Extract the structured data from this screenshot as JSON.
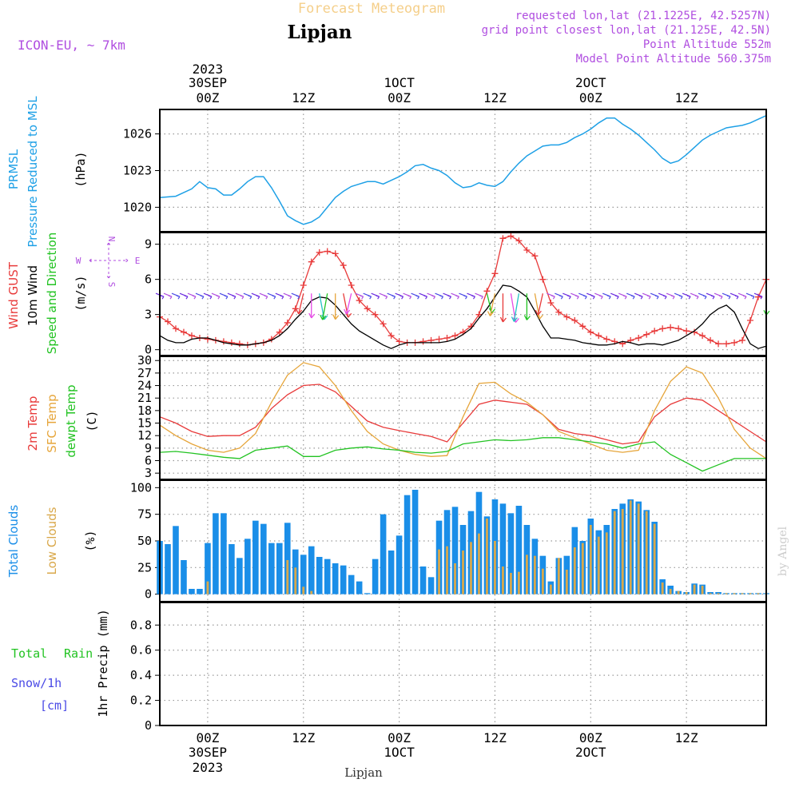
{
  "header": {
    "title": "Forecast Meteogram",
    "location": "Lipjan",
    "model": "ICON-EU, ~ 7km",
    "requested": "requested lon,lat (21.1225E, 42.5257N)",
    "gridpoint": "grid point closest lon,lat (21.125E, 42.5N)",
    "point_alt": "Point Altitude 552m",
    "model_alt": "Model Point Altitude 560.375m",
    "footer": "Lipjan",
    "credit": "by Angel"
  },
  "time_axis": {
    "top_labels": [
      {
        "l1": "2023",
        "l2": "30SEP",
        "l3": "00Z",
        "h": 6
      },
      {
        "l1": "",
        "l2": "",
        "l3": "12Z",
        "h": 18
      },
      {
        "l1": "",
        "l2": "1OCT",
        "l3": "00Z",
        "h": 30
      },
      {
        "l1": "",
        "l2": "",
        "l3": "12Z",
        "h": 42
      },
      {
        "l1": "",
        "l2": "2OCT",
        "l3": "00Z",
        "h": 54
      },
      {
        "l1": "",
        "l2": "",
        "l3": "12Z",
        "h": 66
      }
    ],
    "bottom_labels": [
      {
        "l1": "00Z",
        "l2": "30SEP",
        "l3": "2023",
        "h": 6
      },
      {
        "l1": "12Z",
        "l2": "",
        "l3": "",
        "h": 18
      },
      {
        "l1": "00Z",
        "l2": "1OCT",
        "l3": "",
        "h": 30
      },
      {
        "l1": "12Z",
        "l2": "",
        "l3": "",
        "h": 42
      },
      {
        "l1": "00Z",
        "l2": "2OCT",
        "l3": "",
        "h": 54
      },
      {
        "l1": "12Z",
        "l2": "",
        "l3": "",
        "h": 66
      }
    ]
  },
  "panels": {
    "pressure": {
      "label1": "PRMSL",
      "label2": "Pressure Reduced to MSL",
      "unit": "(hPa)"
    },
    "wind": {
      "label1": "Wind GUST",
      "label2": "10m Wind",
      "label3": "Speed and Direction",
      "unit": "(m/s)",
      "compass_n": "N",
      "compass_s": "S",
      "compass_w": "W",
      "compass_e": "E"
    },
    "temp": {
      "label1": "2m Temp",
      "label2": "SFC Temp",
      "label3": "dewpt Temp",
      "unit": "(C)"
    },
    "cloud": {
      "label1": "Total Clouds",
      "label2": "Low Clouds",
      "unit": "(%)"
    },
    "precip": {
      "label1": "Total",
      "label1b": "Rain",
      "label2": "Snow/1h",
      "label3": "[cm]",
      "unit": "1hr Precip (mm)"
    }
  },
  "colors": {
    "pressure": "#1ea0e6",
    "gust": "#e83a3a",
    "wind": "#000000",
    "t2m": "#e83a3a",
    "sfc": "#e6a53a",
    "dew": "#22c322",
    "total_clouds": "#1a8ee8",
    "low_clouds": "#d9a84a",
    "purple": "#b04ee0",
    "green": "#22c322",
    "blue": "#4a4ae6"
  },
  "chart_data": [
    {
      "type": "line",
      "title": "PRMSL Pressure Reduced to MSL",
      "ylabel": "(hPa)",
      "ylim": [
        1018,
        1028
      ],
      "yticks": [
        1020,
        1023,
        1026
      ],
      "x_hours": [
        0,
        2,
        4,
        5,
        6,
        7,
        8,
        9,
        10,
        11,
        12,
        13,
        14,
        15,
        16,
        17,
        18,
        19,
        20,
        21,
        22,
        23,
        24,
        25,
        26,
        27,
        28,
        29,
        30,
        31,
        32,
        33,
        34,
        35,
        36,
        37,
        38,
        39,
        40,
        41,
        42,
        43,
        44,
        45,
        46,
        47,
        48,
        49,
        50,
        51,
        52,
        53,
        54,
        55,
        56,
        57,
        58,
        59,
        60,
        61,
        62,
        63,
        64,
        65,
        66,
        67,
        68,
        69,
        70,
        71,
        72,
        73,
        74,
        75,
        76
      ],
      "values": [
        1020.8,
        1020.9,
        1021.5,
        1022.1,
        1021.6,
        1021.5,
        1021.0,
        1021.0,
        1021.5,
        1022.1,
        1022.5,
        1022.5,
        1021.6,
        1020.5,
        1019.3,
        1018.9,
        1018.6,
        1018.8,
        1019.2,
        1020.0,
        1020.8,
        1021.3,
        1021.7,
        1021.9,
        1022.1,
        1022.1,
        1021.9,
        1022.2,
        1022.5,
        1022.9,
        1023.4,
        1023.5,
        1023.2,
        1023.0,
        1022.6,
        1022.0,
        1021.6,
        1021.7,
        1022.0,
        1021.8,
        1021.7,
        1022.1,
        1022.9,
        1023.6,
        1024.2,
        1024.6,
        1025.0,
        1025.1,
        1025.1,
        1025.3,
        1025.7,
        1026.0,
        1026.4,
        1026.9,
        1027.3,
        1027.3,
        1026.8,
        1026.4,
        1025.9,
        1025.3,
        1024.7,
        1024.0,
        1023.6,
        1023.8,
        1024.3,
        1024.9,
        1025.5,
        1025.9,
        1026.2,
        1026.5,
        1026.6,
        1026.7,
        1026.9,
        1027.2,
        1027.5
      ],
      "color": "#1ea0e6"
    },
    {
      "type": "line",
      "title": "Wind GUST / 10m Wind Speed and Direction",
      "ylabel": "(m/s)",
      "ylim": [
        -0.5,
        10
      ],
      "yticks": [
        0,
        3,
        6,
        9
      ],
      "series": [
        {
          "name": "Wind GUST",
          "color": "#e83a3a",
          "markers": "+",
          "x": [
            0,
            1,
            2,
            3,
            4,
            5,
            6,
            7,
            8,
            9,
            10,
            11,
            12,
            13,
            14,
            15,
            16,
            17,
            18,
            19,
            20,
            21,
            22,
            23,
            24,
            25,
            26,
            27,
            28,
            29,
            30,
            31,
            32,
            33,
            34,
            35,
            36,
            37,
            38,
            39,
            40,
            41,
            42,
            43,
            44,
            45,
            46,
            47,
            48,
            49,
            50,
            51,
            52,
            53,
            54,
            55,
            56,
            57,
            58,
            59,
            60,
            61,
            62,
            63,
            64,
            65,
            66,
            67,
            68,
            69,
            70,
            71,
            72,
            73,
            74,
            75,
            76
          ],
          "values": [
            2.8,
            2.4,
            1.8,
            1.5,
            1.2,
            1.0,
            0.9,
            0.8,
            0.7,
            0.6,
            0.5,
            0.4,
            0.5,
            0.6,
            0.9,
            1.5,
            2.3,
            3.5,
            5.5,
            7.5,
            8.3,
            8.4,
            8.2,
            7.2,
            5.5,
            4.2,
            3.5,
            3.0,
            2.2,
            1.2,
            0.7,
            0.6,
            0.6,
            0.7,
            0.8,
            0.9,
            1.0,
            1.2,
            1.5,
            2.0,
            3.0,
            5.0,
            6.5,
            9.5,
            9.7,
            9.3,
            8.5,
            8.0,
            6.0,
            4.0,
            3.2,
            2.8,
            2.5,
            2.0,
            1.5,
            1.2,
            0.9,
            0.7,
            0.5,
            0.8,
            1.0,
            1.3,
            1.6,
            1.8,
            1.9,
            1.8,
            1.6,
            1.5,
            1.2,
            0.8,
            0.5,
            0.5,
            0.6,
            0.8,
            2.5,
            4.5,
            6.0
          ]
        },
        {
          "name": "10m Wind",
          "color": "#000000",
          "markers": "",
          "x": [
            0,
            1,
            2,
            3,
            4,
            5,
            6,
            7,
            8,
            9,
            10,
            11,
            12,
            13,
            14,
            15,
            16,
            17,
            18,
            19,
            20,
            21,
            22,
            23,
            24,
            25,
            26,
            27,
            28,
            29,
            30,
            31,
            32,
            33,
            34,
            35,
            36,
            37,
            38,
            39,
            40,
            41,
            42,
            43,
            44,
            45,
            46,
            47,
            48,
            49,
            50,
            51,
            52,
            53,
            54,
            55,
            56,
            57,
            58,
            59,
            60,
            61,
            62,
            63,
            64,
            65,
            66,
            67,
            68,
            69,
            70,
            71,
            72,
            73,
            74,
            75,
            76
          ],
          "values": [
            1.2,
            0.8,
            0.6,
            0.6,
            0.9,
            1.0,
            1.0,
            0.8,
            0.6,
            0.5,
            0.4,
            0.4,
            0.5,
            0.6,
            0.8,
            1.2,
            1.8,
            2.6,
            3.3,
            4.2,
            4.5,
            4.4,
            3.8,
            3.0,
            2.2,
            1.6,
            1.2,
            0.8,
            0.4,
            0.1,
            0.4,
            0.6,
            0.6,
            0.6,
            0.6,
            0.6,
            0.7,
            0.9,
            1.3,
            1.8,
            2.7,
            3.5,
            4.5,
            5.5,
            5.4,
            5.0,
            4.5,
            3.3,
            2.0,
            1.0,
            1.0,
            0.9,
            0.8,
            0.6,
            0.5,
            0.4,
            0.4,
            0.5,
            0.7,
            0.6,
            0.4,
            0.5,
            0.5,
            0.4,
            0.6,
            0.8,
            1.2,
            1.6,
            2.2,
            3.0,
            3.5,
            3.8,
            3.2,
            1.8,
            0.5,
            0.1,
            0.3
          ]
        }
      ]
    },
    {
      "type": "line",
      "title": "2m Temp / SFC Temp / dewpt Temp",
      "ylabel": "(C)",
      "ylim": [
        1.5,
        31
      ],
      "yticks": [
        3,
        6,
        9,
        12,
        15,
        18,
        21,
        24,
        27,
        30
      ],
      "series": [
        {
          "name": "2m Temp",
          "color": "#e83a3a",
          "x": [
            0,
            2,
            4,
            6,
            8,
            10,
            12,
            14,
            16,
            18,
            20,
            22,
            24,
            26,
            28,
            30,
            32,
            34,
            36,
            38,
            40,
            42,
            44,
            46,
            48,
            50,
            52,
            54,
            56,
            58,
            60,
            62,
            64,
            66,
            68,
            70,
            72,
            74,
            76
          ],
          "values": [
            16.5,
            15.0,
            13.0,
            11.8,
            12.0,
            12.0,
            14.0,
            18.5,
            21.8,
            24.0,
            24.3,
            22.5,
            19.0,
            15.5,
            14.0,
            13.2,
            12.5,
            11.8,
            10.5,
            15.0,
            19.5,
            20.5,
            20.0,
            19.5,
            17.0,
            13.5,
            12.5,
            12.0,
            11.0,
            10.0,
            10.5,
            16.5,
            19.5,
            21.0,
            20.5,
            18.0,
            15.5,
            13.0,
            10.5
          ]
        },
        {
          "name": "SFC Temp",
          "color": "#e6a53a",
          "x": [
            0,
            2,
            4,
            6,
            8,
            10,
            12,
            14,
            16,
            18,
            20,
            22,
            24,
            26,
            28,
            30,
            32,
            34,
            36,
            38,
            40,
            42,
            44,
            46,
            48,
            50,
            52,
            54,
            56,
            58,
            60,
            62,
            64,
            66,
            68,
            70,
            72,
            74,
            76
          ],
          "values": [
            14.5,
            12.0,
            10.0,
            8.5,
            8.0,
            9.0,
            12.5,
            20.0,
            26.5,
            29.5,
            28.5,
            24.0,
            18.0,
            13.0,
            10.0,
            8.5,
            7.5,
            7.0,
            7.2,
            16.5,
            24.5,
            24.8,
            22.0,
            20.0,
            17.0,
            13.0,
            11.5,
            10.0,
            8.5,
            8.0,
            8.5,
            18.0,
            25.0,
            28.5,
            27.0,
            21.0,
            13.5,
            9.0,
            6.5
          ]
        },
        {
          "name": "dewpt Temp",
          "color": "#22c322",
          "x": [
            0,
            2,
            4,
            6,
            8,
            10,
            12,
            14,
            16,
            18,
            20,
            22,
            24,
            26,
            28,
            30,
            32,
            34,
            36,
            38,
            40,
            42,
            44,
            46,
            48,
            50,
            52,
            54,
            56,
            58,
            60,
            62,
            64,
            66,
            68,
            70,
            72,
            74,
            76
          ],
          "values": [
            8.0,
            8.2,
            7.8,
            7.3,
            6.8,
            6.5,
            8.5,
            9.0,
            9.5,
            7.0,
            7.0,
            8.5,
            9.0,
            9.3,
            8.8,
            8.5,
            8.0,
            7.8,
            8.2,
            10.0,
            10.5,
            11.0,
            10.8,
            11.0,
            11.5,
            11.5,
            11.0,
            10.5,
            10.0,
            9.0,
            10.0,
            10.5,
            7.5,
            5.5,
            3.5,
            5.0,
            6.5,
            6.5,
            6.5
          ]
        }
      ]
    },
    {
      "type": "bar",
      "title": "Total Clouds / Low Clouds",
      "ylabel": "(%)",
      "ylim": [
        -7,
        107
      ],
      "yticks": [
        0,
        25,
        50,
        75,
        100
      ],
      "x_hours": [
        0,
        1,
        2,
        3,
        4,
        5,
        6,
        7,
        8,
        9,
        10,
        11,
        12,
        13,
        14,
        15,
        16,
        17,
        18,
        19,
        20,
        21,
        22,
        23,
        24,
        25,
        26,
        27,
        28,
        29,
        30,
        31,
        32,
        33,
        34,
        35,
        36,
        37,
        38,
        39,
        40,
        41,
        42,
        43,
        44,
        45,
        46,
        47,
        48,
        49,
        50,
        51,
        52,
        53,
        54,
        55,
        56,
        57,
        58,
        59,
        60,
        61,
        62,
        63,
        64,
        65,
        66,
        67,
        68,
        69,
        70,
        71,
        72,
        73,
        74,
        75,
        76
      ],
      "series": [
        {
          "name": "Total Clouds",
          "color": "#1a8ee8",
          "values": [
            50,
            47,
            64,
            32,
            5,
            5,
            48,
            76,
            76,
            47,
            34,
            52,
            69,
            66,
            48,
            48,
            67,
            42,
            37,
            45,
            35,
            33,
            29,
            27,
            18,
            12,
            1,
            33,
            75,
            41,
            55,
            93,
            98,
            26,
            16,
            69,
            79,
            82,
            65,
            78,
            96,
            73,
            89,
            85,
            76,
            83,
            65,
            52,
            36,
            12,
            34,
            36,
            63,
            50,
            71,
            60,
            65,
            80,
            85,
            89,
            87,
            79,
            68,
            14,
            8,
            3,
            2,
            10,
            9,
            2,
            2,
            1,
            1,
            1,
            1,
            1,
            1
          ]
        },
        {
          "name": "Low Clouds",
          "color": "#d9a84a",
          "values": [
            0,
            0,
            0,
            0,
            0,
            0,
            12,
            0,
            0,
            0,
            0,
            0,
            0,
            0,
            0,
            0,
            32,
            25,
            7,
            3,
            0,
            0,
            0,
            0,
            0,
            0,
            0,
            0,
            0,
            0,
            0,
            0,
            0,
            0,
            0,
            42,
            45,
            29,
            41,
            49,
            57,
            71,
            50,
            26,
            20,
            21,
            37,
            36,
            24,
            9,
            34,
            23,
            44,
            48,
            65,
            54,
            58,
            78,
            80,
            88,
            85,
            78,
            66,
            11,
            5,
            3,
            2,
            9,
            8,
            1,
            1,
            1,
            1,
            1,
            1,
            1,
            1
          ]
        }
      ]
    },
    {
      "type": "bar",
      "title": "1hr Precip",
      "ylabel": "1hr Precip (mm)",
      "ylim": [
        0,
        0.98
      ],
      "yticks": [
        0,
        0.2,
        0.4,
        0.6,
        0.8
      ],
      "values": []
    }
  ]
}
